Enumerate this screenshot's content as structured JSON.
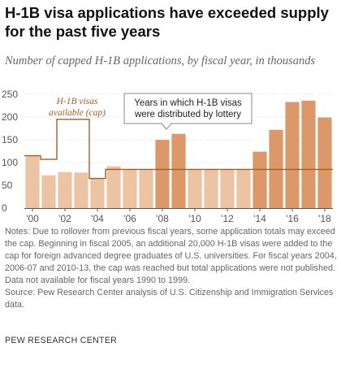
{
  "title": "H-1B visa applications have exceeded supply for the past five years",
  "subtitle": "Number of capped H-1B applications, by fiscal year, in thousands",
  "notes": "Notes: Due to rollover from previous fiscal years, some application totals may exceed the cap. Beginning in fiscal 2005, an additional 20,000 H-1B visas were added to the cap for foreign advanced degree graduates of U.S. universities. For fiscal years 2004, 2006-07 and 2010-13, the cap was reached but total applications were not published. Data not available for fiscal years 1990 to 1999.",
  "source": "Source: Pew Research Center analysis of U.S. Citizenship and Immigration Services data.",
  "footer": "PEW RESEARCH CENTER",
  "chart_data": {
    "type": "bar",
    "categories": [
      "2000",
      "2001",
      "2002",
      "2003",
      "2004",
      "2005",
      "2006",
      "2007",
      "2008",
      "2009",
      "2010",
      "2011",
      "2012",
      "2013",
      "2014",
      "2015",
      "2016",
      "2017",
      "2018"
    ],
    "x_tick_labels": [
      "'00",
      "",
      "'02",
      "",
      "'04",
      "",
      "'06",
      "",
      "'08",
      "",
      "'10",
      "",
      "'12",
      "",
      "'14",
      "",
      "'16",
      "",
      "'18"
    ],
    "series": [
      {
        "name": "",
        "values": [
          115,
          72,
          79,
          78,
          65,
          92,
          85,
          85,
          150,
          163,
          85,
          85,
          85,
          85,
          124,
          172,
          233,
          236,
          199
        ],
        "lottery": [
          false,
          false,
          false,
          false,
          false,
          false,
          false,
          false,
          true,
          true,
          false,
          false,
          false,
          false,
          true,
          true,
          true,
          true,
          true
        ]
      },
      {
        "name": "H-1B visas available (cap)",
        "type": "step",
        "values": [
          115,
          107,
          195,
          195,
          65,
          85,
          85,
          85,
          85,
          85,
          85,
          85,
          85,
          85,
          85,
          85,
          85,
          85,
          85
        ]
      }
    ],
    "ylim": [
      0,
      250
    ],
    "yticks": [
      0,
      50,
      100,
      150,
      200,
      250
    ],
    "grid": true,
    "annotations": {
      "cap_label": "H-1B visas available (cap)",
      "lottery_label": "Years in which H-1B visas were distributed by lottery"
    },
    "colors": {
      "bar_light": "#ecc3a3",
      "bar_lottery": "#dc9868",
      "cap_line": "#a85d20",
      "grid": "#dddddd",
      "axis": "#555555"
    }
  }
}
